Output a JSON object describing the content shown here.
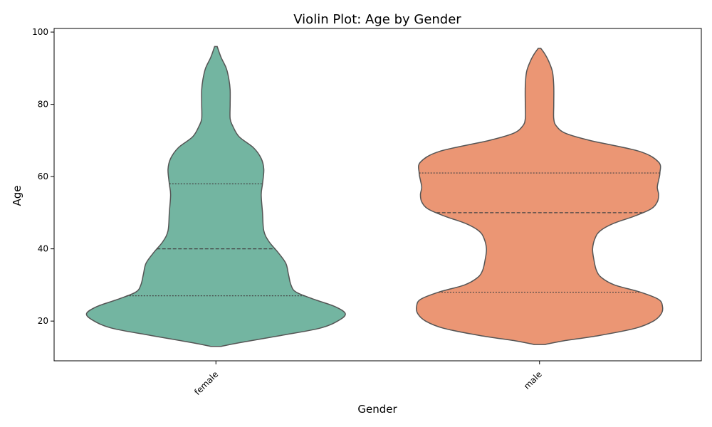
{
  "chart_data": {
    "type": "violin",
    "title": "Violin Plot: Age by Gender",
    "xlabel": "Gender",
    "ylabel": "Age",
    "ylim": [
      9,
      101
    ],
    "yticks": [
      20,
      40,
      60,
      80,
      100
    ],
    "categories": [
      "female",
      "male"
    ],
    "violins": [
      {
        "category": "female",
        "color": "#73b5a1",
        "min": 13,
        "max": 96,
        "q1": 27,
        "median": 40,
        "q3": 58,
        "profile": [
          [
            13,
            0.04
          ],
          [
            14,
            0.18
          ],
          [
            16,
            0.5
          ],
          [
            18,
            0.8
          ],
          [
            20,
            0.94
          ],
          [
            22,
            1.0
          ],
          [
            24,
            0.92
          ],
          [
            26,
            0.76
          ],
          [
            28,
            0.62
          ],
          [
            30,
            0.58
          ],
          [
            33,
            0.56
          ],
          [
            36,
            0.54
          ],
          [
            39,
            0.48
          ],
          [
            42,
            0.41
          ],
          [
            45,
            0.37
          ],
          [
            50,
            0.36
          ],
          [
            55,
            0.35
          ],
          [
            58,
            0.36
          ],
          [
            62,
            0.37
          ],
          [
            65,
            0.35
          ],
          [
            68,
            0.29
          ],
          [
            71,
            0.18
          ],
          [
            74,
            0.13
          ],
          [
            76,
            0.11
          ],
          [
            80,
            0.11
          ],
          [
            84,
            0.11
          ],
          [
            87,
            0.1
          ],
          [
            90,
            0.08
          ],
          [
            93,
            0.04
          ],
          [
            96,
            0.01
          ]
        ]
      },
      {
        "category": "male",
        "color": "#eb9674",
        "min": 13.5,
        "max": 95.5,
        "q1": 28,
        "median": 50,
        "q3": 61,
        "profile": [
          [
            13.5,
            0.04
          ],
          [
            14.5,
            0.18
          ],
          [
            16,
            0.46
          ],
          [
            18,
            0.74
          ],
          [
            20,
            0.88
          ],
          [
            22,
            0.94
          ],
          [
            24,
            0.95
          ],
          [
            26,
            0.92
          ],
          [
            28,
            0.78
          ],
          [
            30,
            0.58
          ],
          [
            32,
            0.48
          ],
          [
            34,
            0.44
          ],
          [
            37,
            0.42
          ],
          [
            40,
            0.41
          ],
          [
            43,
            0.43
          ],
          [
            45,
            0.47
          ],
          [
            47,
            0.57
          ],
          [
            49,
            0.73
          ],
          [
            51,
            0.86
          ],
          [
            53,
            0.91
          ],
          [
            55,
            0.92
          ],
          [
            57,
            0.91
          ],
          [
            59,
            0.92
          ],
          [
            61,
            0.93
          ],
          [
            64,
            0.92
          ],
          [
            67,
            0.77
          ],
          [
            70,
            0.39
          ],
          [
            72,
            0.2
          ],
          [
            74,
            0.13
          ],
          [
            76,
            0.11
          ],
          [
            80,
            0.11
          ],
          [
            85,
            0.11
          ],
          [
            89,
            0.1
          ],
          [
            92,
            0.07
          ],
          [
            94,
            0.04
          ],
          [
            95.5,
            0.01
          ]
        ]
      }
    ]
  }
}
